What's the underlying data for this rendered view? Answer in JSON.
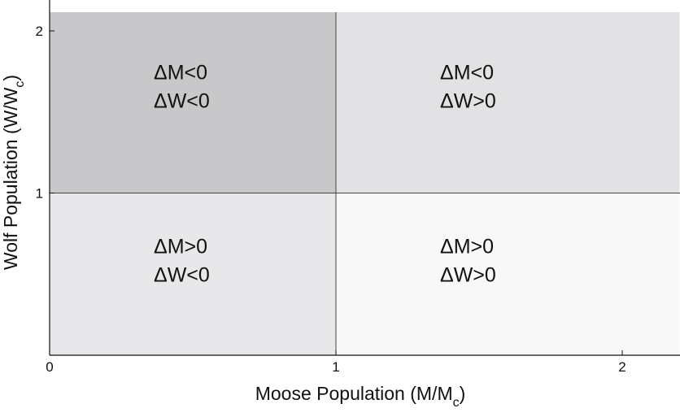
{
  "chart_data": {
    "type": "heatmap",
    "title": "",
    "xlabel": "Moose Population (M/M",
    "xlabel_sub": "c",
    "xlabel_close": ")",
    "ylabel": "Wolf Population (W/W",
    "ylabel_sub": "c",
    "ylabel_close": ")",
    "xlim": [
      0,
      2.2
    ],
    "ylim": [
      0,
      2.12
    ],
    "xticks": [
      0,
      1,
      2
    ],
    "xtick_labels": [
      "0",
      "1",
      "2"
    ],
    "yticks": [
      1,
      2
    ],
    "ytick_labels": [
      "1",
      "2"
    ],
    "divider_x": 1,
    "divider_y": 1,
    "regions": [
      {
        "x": [
          0,
          1
        ],
        "y": [
          1,
          2.12
        ],
        "fill": "#c8c8ca",
        "line1": "ΔM<0",
        "line2": "ΔW<0"
      },
      {
        "x": [
          1,
          2.2
        ],
        "y": [
          1,
          2.12
        ],
        "fill": "#e2e2e4",
        "line1": "ΔM<0",
        "line2": "ΔW>0"
      },
      {
        "x": [
          0,
          1
        ],
        "y": [
          0,
          1
        ],
        "fill": "#e8e8ea",
        "line1": "ΔM>0",
        "line2": "ΔW<0"
      },
      {
        "x": [
          1,
          2.2
        ],
        "y": [
          0,
          1
        ],
        "fill": "#f8f8f8",
        "line1": "ΔM>0",
        "line2": "ΔW>0"
      }
    ]
  }
}
